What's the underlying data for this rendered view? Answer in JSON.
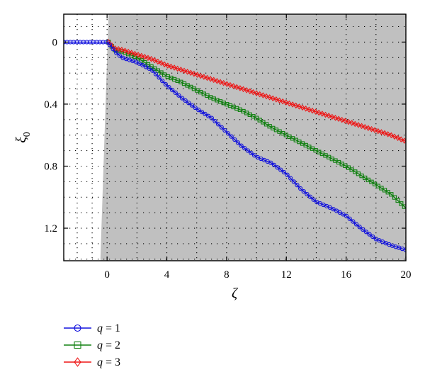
{
  "chart_data": {
    "type": "line",
    "title": "",
    "xlabel": "ζ",
    "ylabel": "ξ",
    "ylabel_subscript": "0",
    "xlim": [
      -2.9,
      20
    ],
    "ylim": [
      1.41,
      -0.18
    ],
    "y_inverted": true,
    "xticks": [
      0,
      4,
      8,
      12,
      16,
      20
    ],
    "yticks": [
      0,
      0.4,
      0.8,
      1.2
    ],
    "xtick_labels": [
      "0",
      "4",
      "8",
      "12",
      "16",
      "20"
    ],
    "ytick_labels": [
      "0",
      "0.4",
      "0.8",
      "1.2"
    ],
    "minor_gridlines_x": [
      -2,
      -1,
      0,
      2,
      4,
      6,
      8,
      10,
      12,
      14,
      16,
      18,
      20
    ],
    "minor_gridlines_y": [
      -0.1,
      0,
      0.1,
      0.2,
      0.3,
      0.4,
      0.5,
      0.6,
      0.7,
      0.8,
      0.9,
      1.0,
      1.1,
      1.2,
      1.3,
      1.4
    ],
    "grid": "dotted",
    "shaded_region": {
      "color": "#c0c0c0",
      "boundary": [
        [
          0.1,
          -0.18
        ],
        [
          -0.45,
          1.41
        ]
      ]
    },
    "legend_position": "below-left",
    "series": [
      {
        "name": "q = 1",
        "name_var": "q",
        "name_value": "= 1",
        "color": "#1010dd",
        "marker": "circle",
        "x": [
          -2.9,
          -2,
          -1,
          0,
          0.1,
          0.3,
          0.5,
          1,
          2,
          3,
          4,
          5,
          6,
          7,
          8,
          9,
          10,
          11,
          12,
          13,
          14,
          15,
          16,
          17,
          18,
          19,
          20
        ],
        "y": [
          0,
          0,
          0,
          0,
          0.01,
          0.03,
          0.06,
          0.1,
          0.13,
          0.18,
          0.28,
          0.36,
          0.43,
          0.49,
          0.58,
          0.67,
          0.74,
          0.78,
          0.85,
          0.95,
          1.03,
          1.07,
          1.12,
          1.2,
          1.27,
          1.31,
          1.34
        ]
      },
      {
        "name": "q = 2",
        "name_var": "q",
        "name_value": "= 2",
        "color": "#108010",
        "marker": "square",
        "x": [
          0.1,
          0.5,
          1,
          2,
          3,
          4,
          5,
          6,
          7,
          8,
          9,
          10,
          11,
          12,
          13,
          14,
          15,
          16,
          17,
          18,
          19,
          20
        ],
        "y": [
          0,
          0.05,
          0.06,
          0.1,
          0.16,
          0.22,
          0.26,
          0.31,
          0.36,
          0.4,
          0.44,
          0.49,
          0.55,
          0.6,
          0.65,
          0.7,
          0.75,
          0.8,
          0.86,
          0.92,
          0.98,
          1.07
        ]
      },
      {
        "name": "q = 3",
        "name_var": "q",
        "name_value": "= 3",
        "color": "#ee1515",
        "marker": "diamond",
        "x": [
          0.1,
          0.5,
          1,
          2,
          3,
          4,
          5,
          6,
          7,
          8,
          9,
          10,
          11,
          12,
          13,
          14,
          15,
          16,
          17,
          18,
          19,
          20
        ],
        "y": [
          0,
          0.04,
          0.05,
          0.08,
          0.11,
          0.15,
          0.18,
          0.21,
          0.24,
          0.27,
          0.3,
          0.33,
          0.36,
          0.39,
          0.42,
          0.45,
          0.48,
          0.51,
          0.54,
          0.57,
          0.6,
          0.64
        ]
      }
    ]
  }
}
